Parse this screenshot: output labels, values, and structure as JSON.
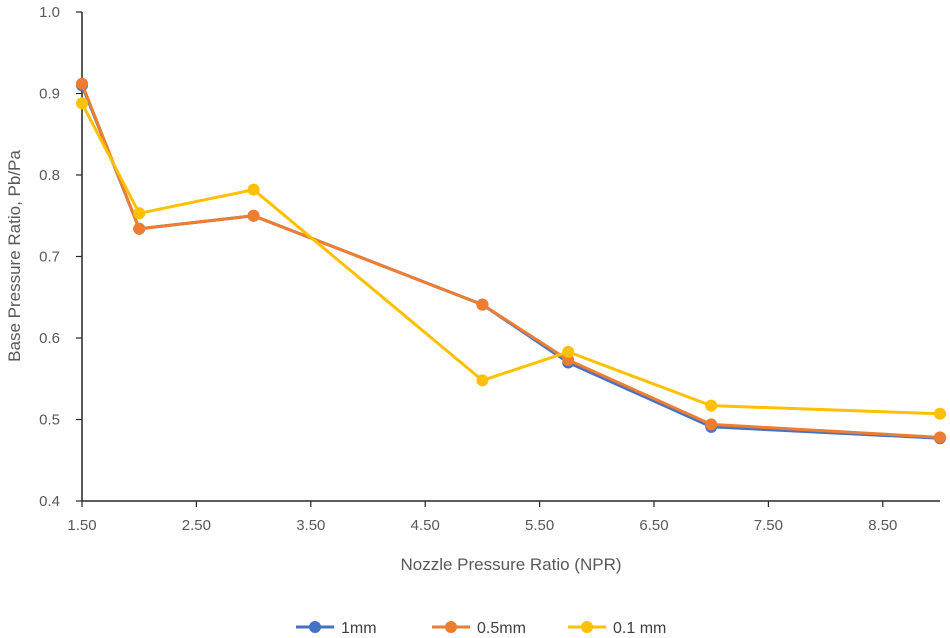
{
  "chart_data": {
    "type": "line",
    "title": "",
    "xlabel": "Nozzle Pressure Ratio (NPR)",
    "ylabel": "Base Pressure Ratio, Pb/Pa",
    "xlim": [
      1.5,
      9.0
    ],
    "ylim": [
      0.4,
      1.0
    ],
    "x_ticks": [
      1.5,
      2.5,
      3.5,
      4.5,
      5.5,
      6.5,
      7.5,
      8.5
    ],
    "x_tick_labels": [
      "1.50",
      "2.50",
      "3.50",
      "4.50",
      "5.50",
      "6.50",
      "7.50",
      "8.50"
    ],
    "y_ticks": [
      0.4,
      0.5,
      0.6,
      0.7,
      0.8,
      0.9,
      1.0
    ],
    "y_tick_labels": [
      "0.4",
      "0.5",
      "0.6",
      "0.7",
      "0.8",
      "0.9",
      "1.0"
    ],
    "grid": false,
    "legend_position": "bottom",
    "x": [
      1.5,
      2.0,
      3.0,
      5.0,
      5.75,
      7.0,
      9.0
    ],
    "series": [
      {
        "name": "1mm",
        "color": "#4472C4",
        "values": [
          0.91,
          0.734,
          0.75,
          0.641,
          0.57,
          0.491,
          0.477
        ]
      },
      {
        "name": "0.5mm",
        "color": "#ED7D31",
        "values": [
          0.912,
          0.734,
          0.75,
          0.641,
          0.573,
          0.494,
          0.478
        ]
      },
      {
        "name": "0.1 mm",
        "color": "#FFC000",
        "values": [
          0.888,
          0.753,
          0.782,
          0.548,
          0.583,
          0.517,
          0.507
        ]
      }
    ]
  }
}
